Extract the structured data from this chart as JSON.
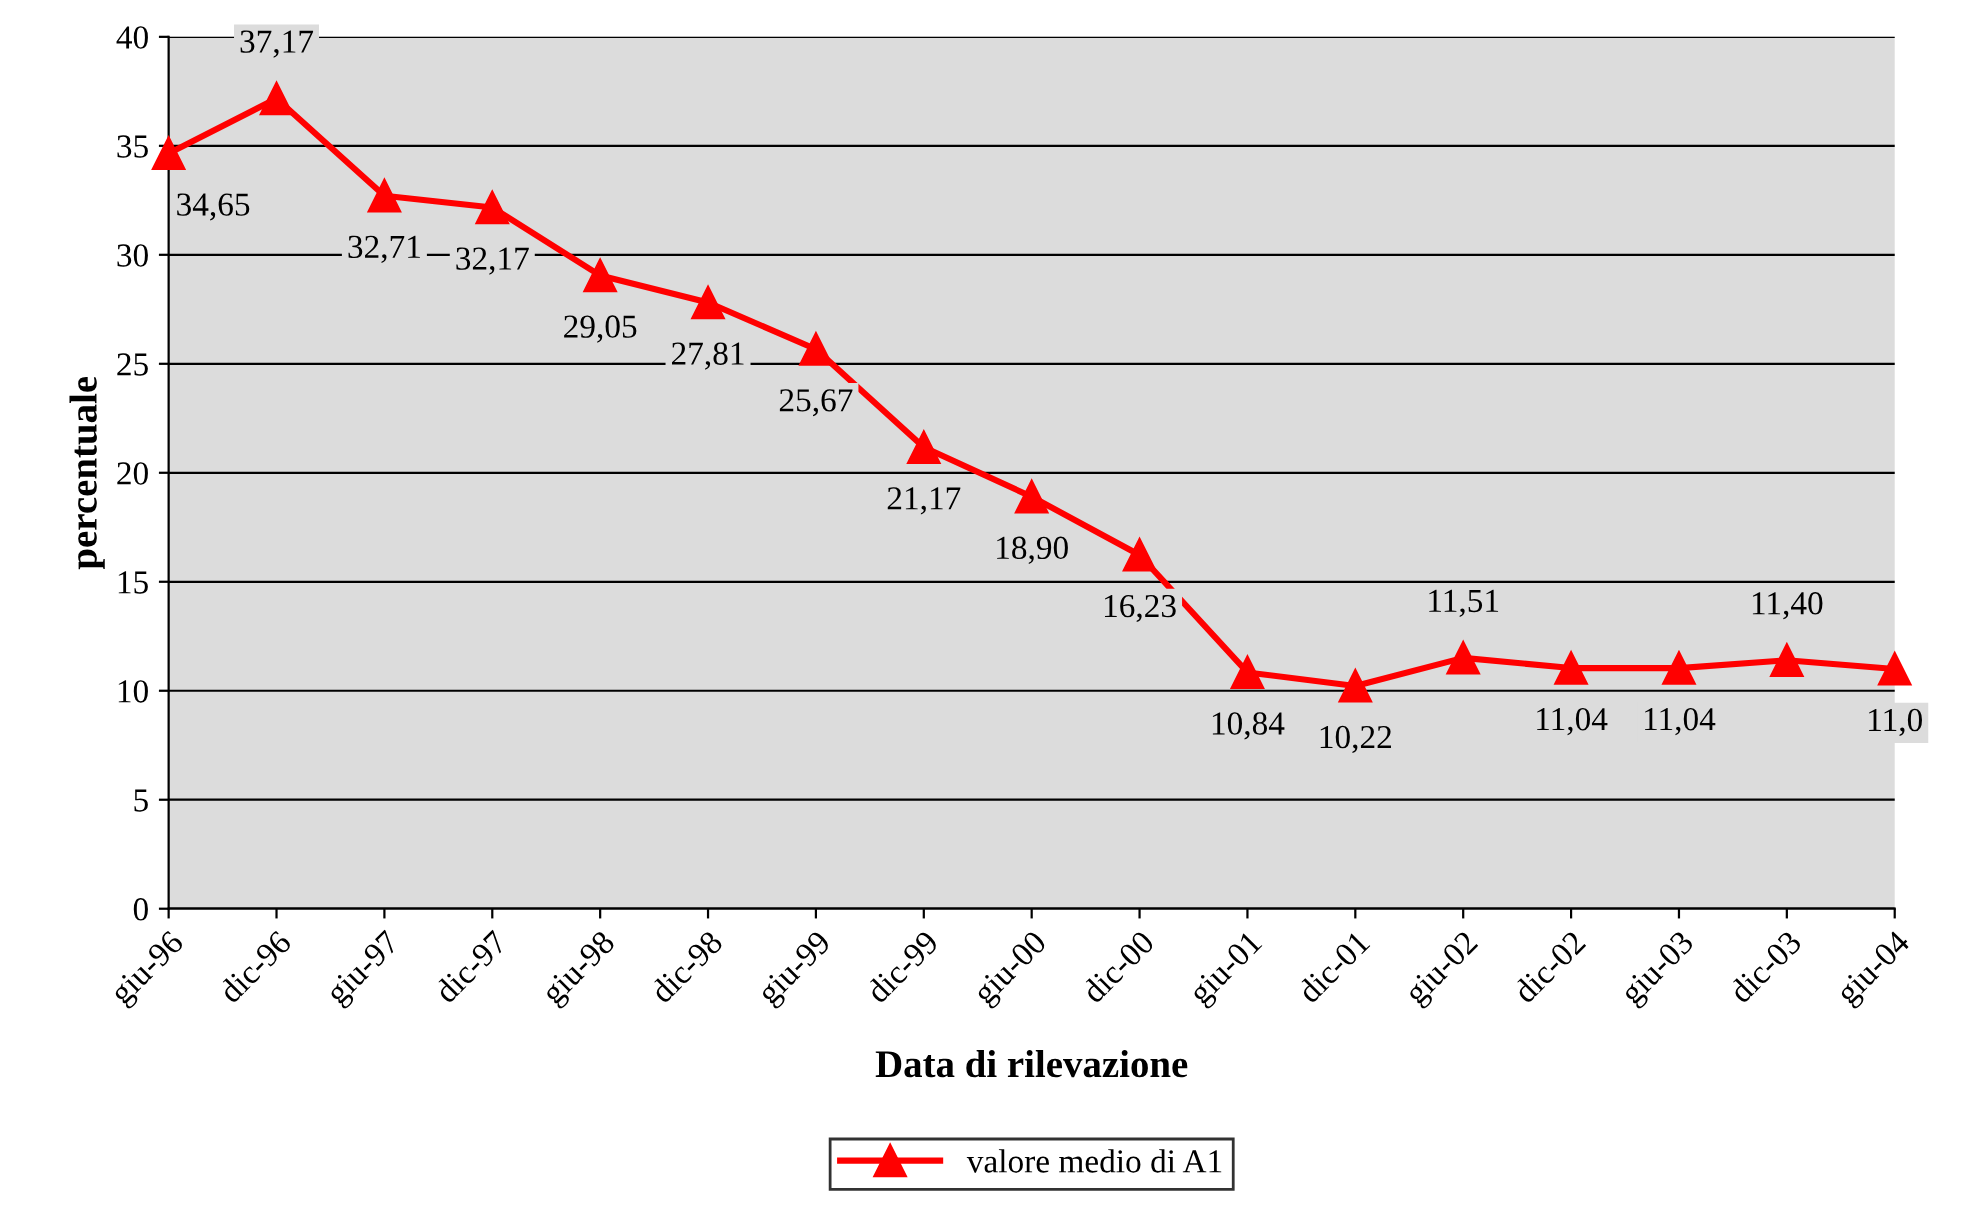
{
  "chart_data": {
    "type": "line",
    "xlabel": "Data di rilevazione",
    "ylabel": "percentuale",
    "categories": [
      "giu-96",
      "dic-96",
      "giu-97",
      "dic-97",
      "giu-98",
      "dic-98",
      "giu-99",
      "dic-99",
      "giu-00",
      "dic-00",
      "giu-01",
      "dic-01",
      "giu-02",
      "dic-02",
      "giu-03",
      "dic-03",
      "giu-04"
    ],
    "series": [
      {
        "name": "valore medio di A1",
        "color": "#ff0000",
        "values": [
          34.65,
          37.17,
          32.71,
          32.17,
          29.05,
          27.81,
          25.67,
          21.17,
          18.9,
          16.23,
          10.84,
          10.22,
          11.51,
          11.04,
          11.04,
          11.4,
          11.0
        ],
        "value_labels": [
          "34,65",
          "37,17",
          "32,71",
          "32,17",
          "29,05",
          "27,81",
          "25,67",
          "21,17",
          "18,90",
          "16,23",
          "10,84",
          "10,22",
          "11,51",
          "11,04",
          "11,04",
          "11,40",
          "11,0"
        ]
      }
    ],
    "ylim": [
      0,
      40
    ],
    "yticks": [
      0,
      5,
      10,
      15,
      20,
      25,
      30,
      35,
      40
    ],
    "grid": "y",
    "legend": "bottom",
    "marker": "triangle",
    "line_style": "solid"
  }
}
